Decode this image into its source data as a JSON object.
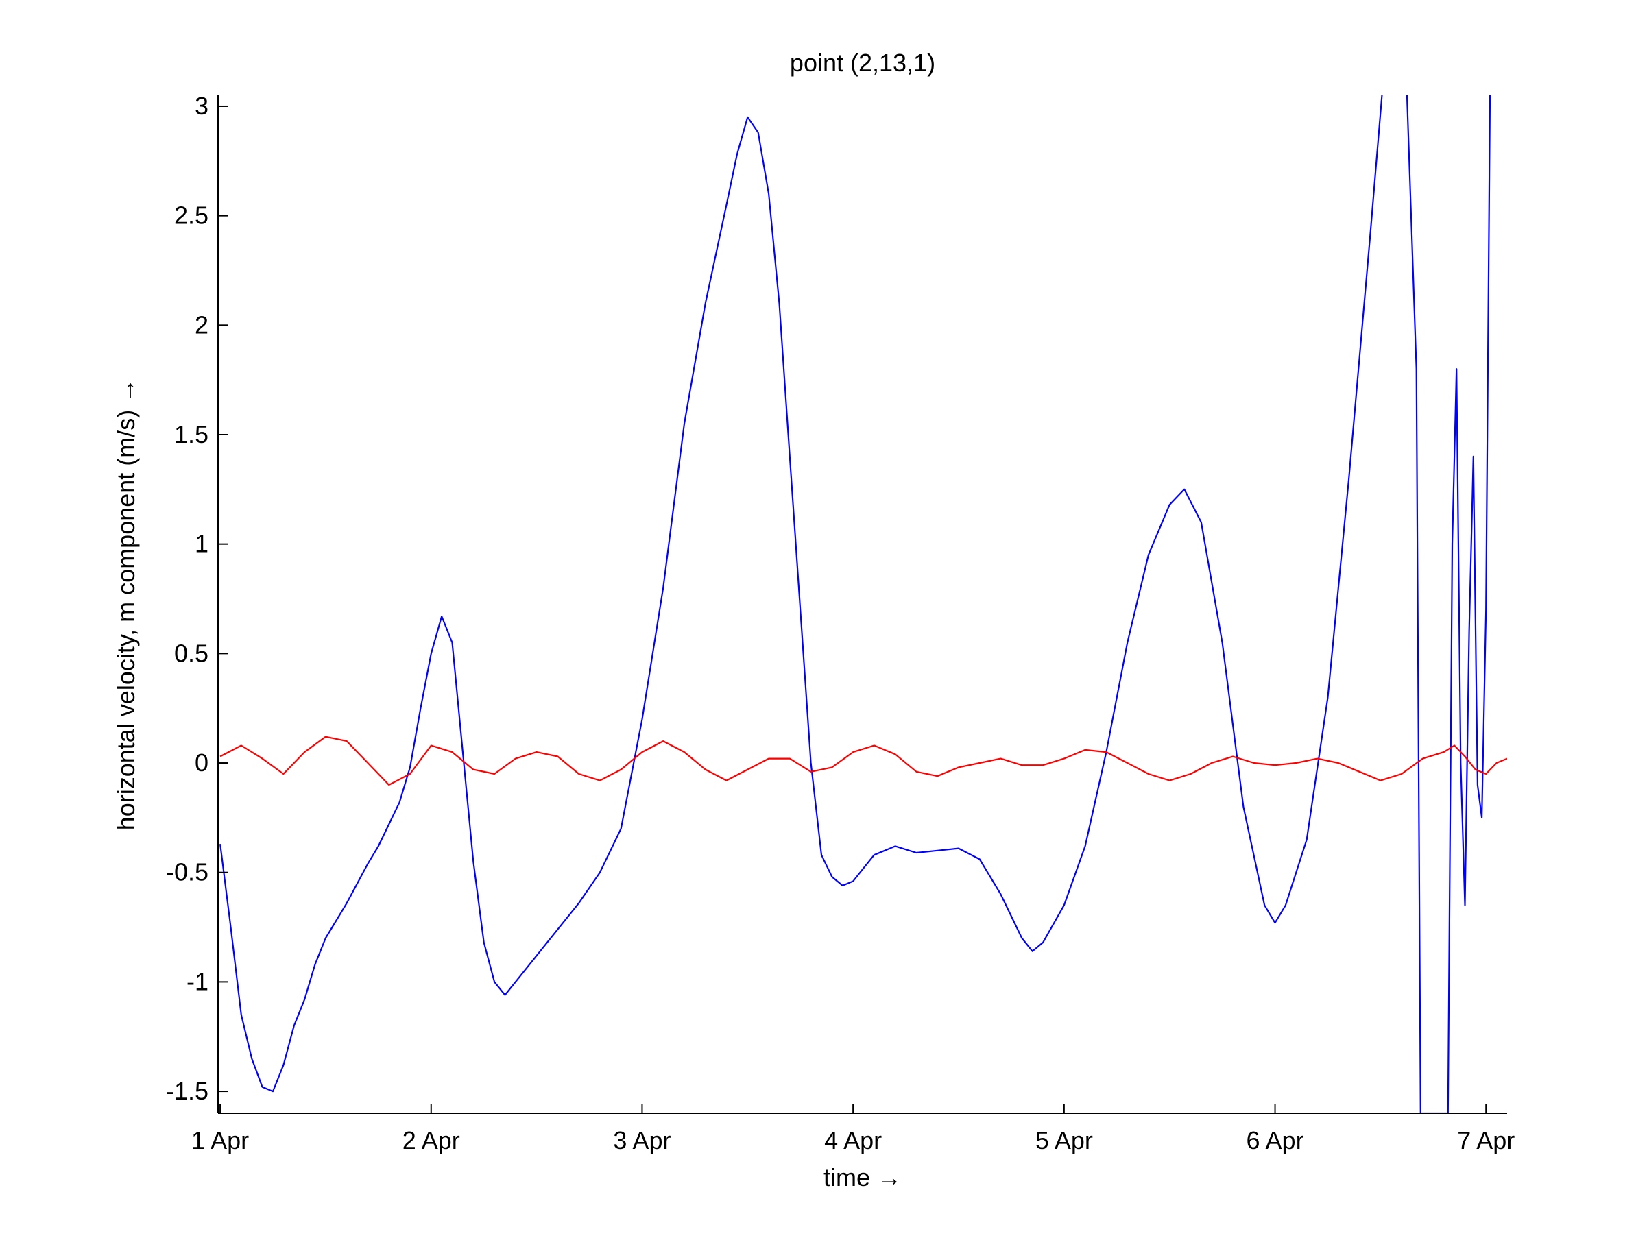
{
  "chart_data": {
    "type": "line",
    "title": "point (2,13,1)",
    "xlabel": "time →",
    "ylabel": "horizontal velocity, m component (m/s) →",
    "xlim": [
      -0.01,
      6.1
    ],
    "ylim": [
      -1.6,
      3.05
    ],
    "grid": false,
    "legend": "none",
    "x_ticks": [
      {
        "value": 0,
        "label": "1 Apr"
      },
      {
        "value": 1,
        "label": "2 Apr"
      },
      {
        "value": 2,
        "label": "3 Apr"
      },
      {
        "value": 3,
        "label": "4 Apr"
      },
      {
        "value": 4,
        "label": "5 Apr"
      },
      {
        "value": 5,
        "label": "6 Apr"
      },
      {
        "value": 6,
        "label": "7 Apr"
      }
    ],
    "y_ticks": [
      {
        "value": -1.5,
        "label": "-1.5"
      },
      {
        "value": -1,
        "label": "-1"
      },
      {
        "value": -0.5,
        "label": "-0.5"
      },
      {
        "value": 0,
        "label": "0"
      },
      {
        "value": 0.5,
        "label": "0.5"
      },
      {
        "value": 1,
        "label": "1"
      },
      {
        "value": 1.5,
        "label": "1.5"
      },
      {
        "value": 2,
        "label": "2"
      },
      {
        "value": 2.5,
        "label": "2.5"
      },
      {
        "value": 3,
        "label": "3"
      }
    ],
    "series": [
      {
        "color": "#0000ff",
        "points": [
          [
            0.0,
            -0.37
          ],
          [
            0.05,
            -0.75
          ],
          [
            0.1,
            -1.15
          ],
          [
            0.15,
            -1.35
          ],
          [
            0.2,
            -1.48
          ],
          [
            0.25,
            -1.5
          ],
          [
            0.3,
            -1.38
          ],
          [
            0.35,
            -1.2
          ],
          [
            0.4,
            -1.08
          ],
          [
            0.45,
            -0.92
          ],
          [
            0.5,
            -0.8
          ],
          [
            0.55,
            -0.72
          ],
          [
            0.6,
            -0.64
          ],
          [
            0.65,
            -0.55
          ],
          [
            0.7,
            -0.46
          ],
          [
            0.75,
            -0.38
          ],
          [
            0.8,
            -0.28
          ],
          [
            0.85,
            -0.18
          ],
          [
            0.9,
            -0.02
          ],
          [
            0.95,
            0.25
          ],
          [
            1.0,
            0.5
          ],
          [
            1.05,
            0.67
          ],
          [
            1.1,
            0.55
          ],
          [
            1.15,
            0.05
          ],
          [
            1.2,
            -0.45
          ],
          [
            1.25,
            -0.82
          ],
          [
            1.3,
            -1.0
          ],
          [
            1.35,
            -1.06
          ],
          [
            1.4,
            -1.0
          ],
          [
            1.5,
            -0.88
          ],
          [
            1.6,
            -0.76
          ],
          [
            1.7,
            -0.64
          ],
          [
            1.8,
            -0.5
          ],
          [
            1.9,
            -0.3
          ],
          [
            2.0,
            0.2
          ],
          [
            2.1,
            0.8
          ],
          [
            2.2,
            1.55
          ],
          [
            2.3,
            2.1
          ],
          [
            2.4,
            2.55
          ],
          [
            2.45,
            2.78
          ],
          [
            2.5,
            2.95
          ],
          [
            2.55,
            2.88
          ],
          [
            2.6,
            2.6
          ],
          [
            2.65,
            2.1
          ],
          [
            2.7,
            1.4
          ],
          [
            2.75,
            0.7
          ],
          [
            2.8,
            0.0
          ],
          [
            2.85,
            -0.42
          ],
          [
            2.9,
            -0.52
          ],
          [
            2.95,
            -0.56
          ],
          [
            3.0,
            -0.54
          ],
          [
            3.05,
            -0.48
          ],
          [
            3.1,
            -0.42
          ],
          [
            3.2,
            -0.38
          ],
          [
            3.3,
            -0.41
          ],
          [
            3.4,
            -0.4
          ],
          [
            3.5,
            -0.39
          ],
          [
            3.6,
            -0.44
          ],
          [
            3.7,
            -0.6
          ],
          [
            3.8,
            -0.8
          ],
          [
            3.85,
            -0.86
          ],
          [
            3.9,
            -0.82
          ],
          [
            4.0,
            -0.65
          ],
          [
            4.1,
            -0.38
          ],
          [
            4.2,
            0.05
          ],
          [
            4.3,
            0.55
          ],
          [
            4.4,
            0.95
          ],
          [
            4.5,
            1.18
          ],
          [
            4.57,
            1.25
          ],
          [
            4.65,
            1.1
          ],
          [
            4.75,
            0.55
          ],
          [
            4.85,
            -0.2
          ],
          [
            4.95,
            -0.65
          ],
          [
            5.0,
            -0.73
          ],
          [
            5.05,
            -0.65
          ],
          [
            5.15,
            -0.35
          ],
          [
            5.25,
            0.3
          ],
          [
            5.35,
            1.3
          ],
          [
            5.45,
            2.4
          ],
          [
            5.52,
            3.2
          ],
          [
            5.62,
            3.2
          ],
          [
            5.67,
            1.8
          ],
          [
            5.69,
            -1.6
          ],
          [
            5.72,
            -1.6
          ],
          [
            5.82,
            -1.6
          ],
          [
            5.84,
            1.0
          ],
          [
            5.86,
            1.8
          ],
          [
            5.88,
            0.0
          ],
          [
            5.9,
            -0.65
          ],
          [
            5.92,
            0.6
          ],
          [
            5.94,
            1.4
          ],
          [
            5.96,
            -0.1
          ],
          [
            5.98,
            -0.25
          ],
          [
            6.0,
            0.7
          ],
          [
            6.02,
            3.2
          ]
        ]
      },
      {
        "color": "#ff0000",
        "points": [
          [
            0.0,
            0.03
          ],
          [
            0.1,
            0.08
          ],
          [
            0.2,
            0.02
          ],
          [
            0.3,
            -0.05
          ],
          [
            0.4,
            0.05
          ],
          [
            0.5,
            0.12
          ],
          [
            0.6,
            0.1
          ],
          [
            0.7,
            0.0
          ],
          [
            0.8,
            -0.1
          ],
          [
            0.9,
            -0.05
          ],
          [
            1.0,
            0.08
          ],
          [
            1.1,
            0.05
          ],
          [
            1.2,
            -0.03
          ],
          [
            1.3,
            -0.05
          ],
          [
            1.4,
            0.02
          ],
          [
            1.5,
            0.05
          ],
          [
            1.6,
            0.03
          ],
          [
            1.7,
            -0.05
          ],
          [
            1.8,
            -0.08
          ],
          [
            1.9,
            -0.03
          ],
          [
            2.0,
            0.05
          ],
          [
            2.1,
            0.1
          ],
          [
            2.2,
            0.05
          ],
          [
            2.3,
            -0.03
          ],
          [
            2.4,
            -0.08
          ],
          [
            2.5,
            -0.03
          ],
          [
            2.6,
            0.02
          ],
          [
            2.7,
            0.02
          ],
          [
            2.8,
            -0.04
          ],
          [
            2.9,
            -0.02
          ],
          [
            3.0,
            0.05
          ],
          [
            3.1,
            0.08
          ],
          [
            3.2,
            0.04
          ],
          [
            3.3,
            -0.04
          ],
          [
            3.4,
            -0.06
          ],
          [
            3.5,
            -0.02
          ],
          [
            3.6,
            0.0
          ],
          [
            3.7,
            0.02
          ],
          [
            3.8,
            -0.01
          ],
          [
            3.9,
            -0.01
          ],
          [
            4.0,
            0.02
          ],
          [
            4.1,
            0.06
          ],
          [
            4.2,
            0.05
          ],
          [
            4.3,
            0.0
          ],
          [
            4.4,
            -0.05
          ],
          [
            4.5,
            -0.08
          ],
          [
            4.6,
            -0.05
          ],
          [
            4.7,
            0.0
          ],
          [
            4.8,
            0.03
          ],
          [
            4.9,
            0.0
          ],
          [
            5.0,
            -0.01
          ],
          [
            5.1,
            0.0
          ],
          [
            5.2,
            0.02
          ],
          [
            5.3,
            0.0
          ],
          [
            5.4,
            -0.04
          ],
          [
            5.5,
            -0.08
          ],
          [
            5.6,
            -0.05
          ],
          [
            5.7,
            0.02
          ],
          [
            5.8,
            0.05
          ],
          [
            5.85,
            0.08
          ],
          [
            5.9,
            0.03
          ],
          [
            5.95,
            -0.03
          ],
          [
            6.0,
            -0.05
          ],
          [
            6.05,
            0.0
          ],
          [
            6.1,
            0.02
          ]
        ]
      }
    ]
  }
}
